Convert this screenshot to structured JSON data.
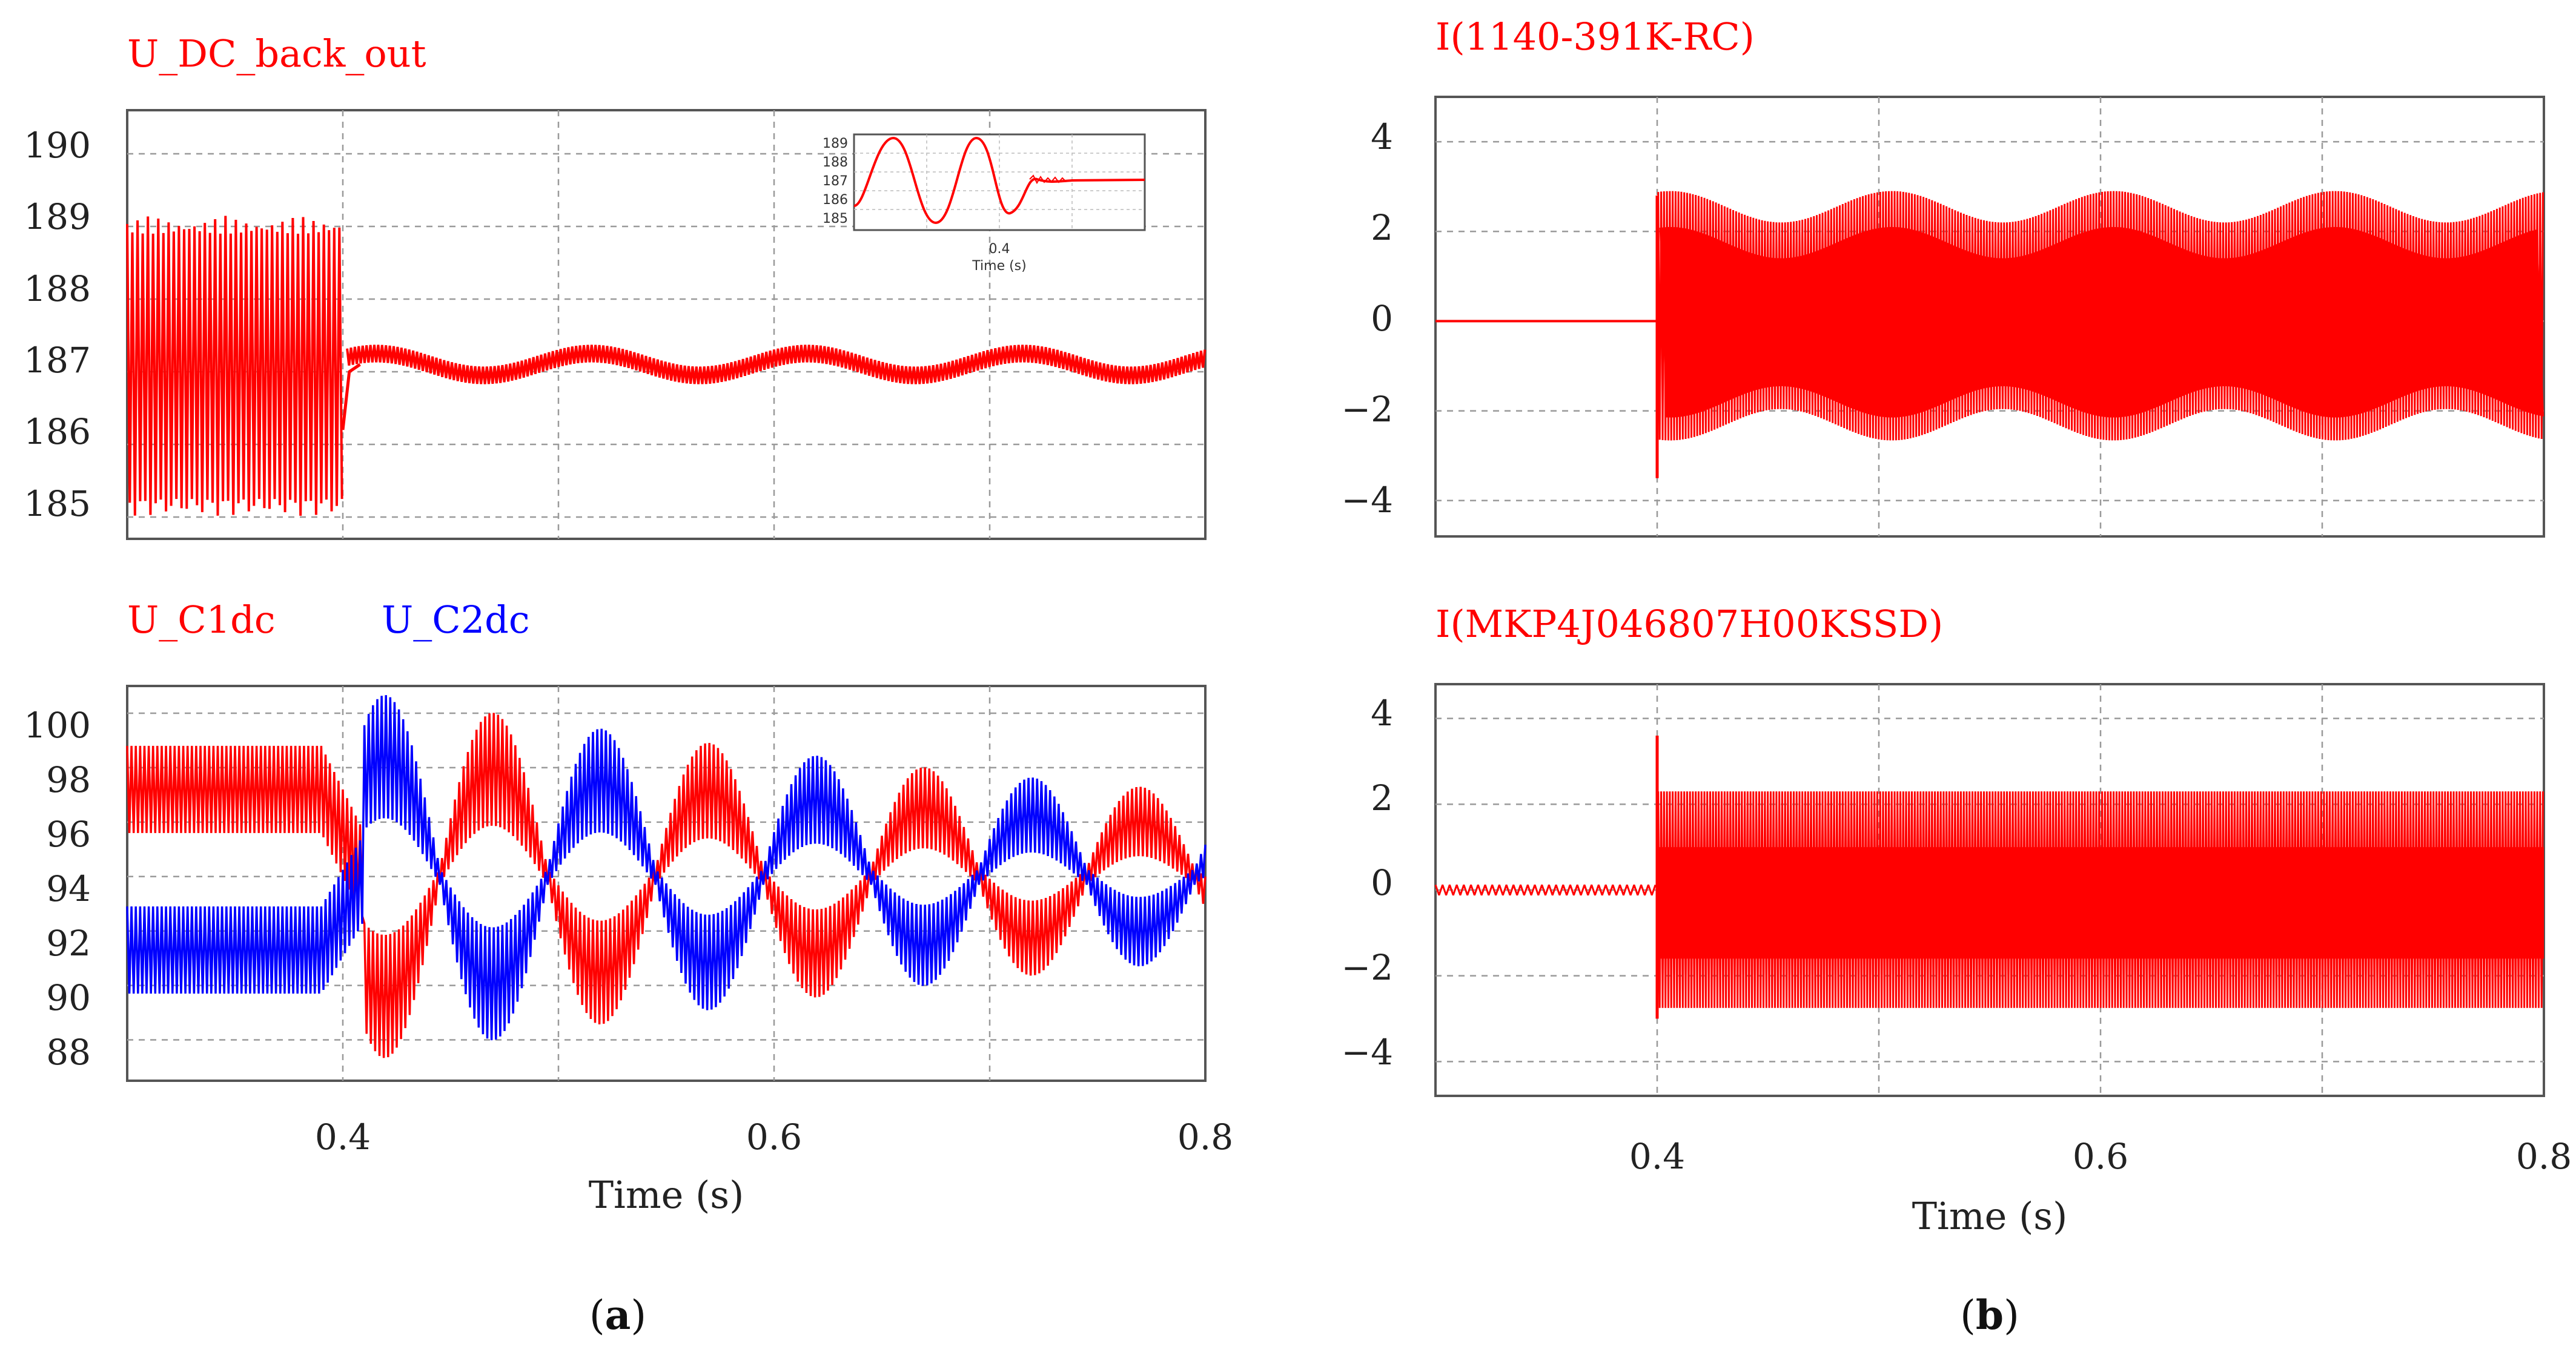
{
  "colors": {
    "red": "#ff0000",
    "blue": "#0000ff",
    "grid": "#9a9a9a",
    "frame": "#555555"
  },
  "chart_data": [
    {
      "id": "a-top",
      "type": "line",
      "title": "U_DC_back_out",
      "xlabel": "",
      "ylabel": "",
      "xlim": [
        0.3,
        0.8
      ],
      "ylim": [
        184.7,
        190.6
      ],
      "yticks": [
        "185",
        "186",
        "187",
        "188",
        "189",
        "190"
      ],
      "ytick_values": [
        185,
        186,
        187,
        188,
        189,
        190
      ],
      "xtick_values": [
        0.4,
        0.6
      ],
      "series": [
        {
          "name": "U_DC_back_out",
          "color": "#ff0000",
          "envelope": {
            "before": {
              "x_start": 0.3,
              "x_end": 0.4,
              "min": 185.0,
              "max": 189.15
            },
            "after": {
              "x_start": 0.4,
              "x_end": 0.8,
              "center": 187.15,
              "ripple": 0.12,
              "slow_amplitude": 0.15,
              "slow_period": 0.1
            }
          }
        }
      ],
      "inset": {
        "yticks": [
          "189",
          "188",
          "187",
          "186",
          "185"
        ],
        "xtick": "0.4",
        "xlabel": "Time (s)"
      }
    },
    {
      "id": "a-bottom",
      "type": "line",
      "title": "",
      "xlabel": "Time (s)",
      "ylabel": "",
      "xlim": [
        0.3,
        0.8
      ],
      "ylim": [
        86.5,
        101
      ],
      "yticks": [
        "100",
        "98",
        "96",
        "94",
        "92",
        "90",
        "88"
      ],
      "ytick_values": [
        100,
        98,
        96,
        94,
        92,
        90,
        88
      ],
      "xticks": [
        "0.4",
        "0.6",
        "0.8"
      ],
      "xtick_values": [
        0.4,
        0.6,
        0.8
      ],
      "series": [
        {
          "name": "U_C1dc",
          "color": "#ff0000",
          "envelope": {
            "before_center": 97.2,
            "after_center": 94.0,
            "band": 3.2,
            "beat_amplitude": 4.5,
            "beat_decay": 0.45,
            "beat_period": 0.1
          }
        },
        {
          "name": "U_C2dc",
          "color": "#0000ff",
          "envelope": {
            "before_center": 91.3,
            "after_center": 94.0,
            "band": 3.2,
            "beat_amplitude": 4.5,
            "beat_decay": 0.45,
            "beat_period": 0.1
          }
        }
      ]
    },
    {
      "id": "b-top",
      "type": "line",
      "title": "I(1140-391K-RC)",
      "xlabel": "",
      "ylabel": "",
      "xlim": [
        0.3,
        0.8
      ],
      "ylim": [
        -4.8,
        5.0
      ],
      "yticks": [
        "4",
        "2",
        "0",
        "−2",
        "−4"
      ],
      "ytick_values": [
        4,
        2,
        0,
        -2,
        -4
      ],
      "xtick_values": [
        0.4,
        0.6
      ],
      "series": [
        {
          "name": "I(1140-391K-RC)",
          "color": "#ff0000",
          "envelope": {
            "before_value": 0,
            "spike_min": -3.5,
            "spike_max": 2.8,
            "base_amplitude": 2.35,
            "slow_amplitude": 0.35,
            "slow_period": 0.1,
            "offset": 0.2
          }
        }
      ]
    },
    {
      "id": "b-bottom",
      "type": "line",
      "title": "I(MKP4J046807H00KSSD)",
      "xlabel": "Time (s)",
      "ylabel": "",
      "xlim": [
        0.3,
        0.8
      ],
      "ylim": [
        -4.8,
        4.8
      ],
      "yticks": [
        "4",
        "2",
        "0",
        "−2",
        "−4"
      ],
      "ytick_values": [
        4,
        2,
        0,
        -2,
        -4
      ],
      "xticks": [
        "0.4",
        "0.6",
        "0.8"
      ],
      "xtick_values": [
        0.4,
        0.6,
        0.8
      ],
      "series": [
        {
          "name": "I(MKP4J046807H00KSSD)",
          "color": "#ff0000",
          "envelope": {
            "before_ripple": 0.12,
            "spike_max": 3.6,
            "spike_min": -3.0,
            "upper": 2.3,
            "lower": -2.75,
            "mid_upper": 1.0,
            "mid_lower": -1.6
          }
        }
      ]
    }
  ],
  "subfigure_labels": {
    "a": "(a)",
    "b": "(b)"
  },
  "sub_label_parts": {
    "open": "(",
    "a": "a",
    "b": "b",
    "close": ")"
  }
}
